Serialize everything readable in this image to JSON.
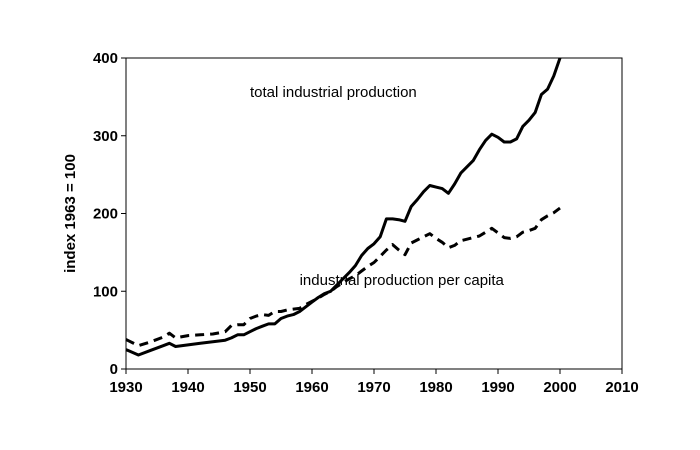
{
  "chart_data": {
    "type": "line",
    "title": "",
    "xlabel": "",
    "ylabel": "index 1963 = 100",
    "xlim": [
      1930,
      2010
    ],
    "ylim": [
      0,
      400
    ],
    "x_ticks": [
      1930,
      1940,
      1950,
      1960,
      1970,
      1980,
      1990,
      2000,
      2010
    ],
    "y_ticks": [
      0,
      100,
      200,
      300,
      400
    ],
    "grid": false,
    "legend": "none",
    "series": [
      {
        "name": "total industrial production",
        "style": "solid",
        "color": "#000000",
        "x": [
          1930,
          1932,
          1934,
          1936,
          1937,
          1938,
          1940,
          1942,
          1944,
          1946,
          1947,
          1948,
          1949,
          1950,
          1951,
          1952,
          1953,
          1954,
          1955,
          1956,
          1957,
          1958,
          1959,
          1960,
          1961,
          1962,
          1963,
          1964,
          1965,
          1966,
          1967,
          1968,
          1969,
          1970,
          1971,
          1972,
          1973,
          1974,
          1975,
          1976,
          1977,
          1978,
          1979,
          1980,
          1981,
          1982,
          1983,
          1984,
          1985,
          1986,
          1987,
          1988,
          1989,
          1990,
          1991,
          1992,
          1993,
          1994,
          1995,
          1996,
          1997,
          1998,
          1999,
          2000
        ],
        "y": [
          25,
          18,
          24,
          30,
          33,
          29,
          31,
          33,
          35,
          37,
          40,
          44,
          44,
          48,
          52,
          55,
          58,
          58,
          65,
          68,
          70,
          74,
          80,
          86,
          92,
          97,
          100,
          108,
          116,
          124,
          133,
          146,
          155,
          161,
          170,
          193,
          193,
          192,
          190,
          209,
          218,
          228,
          236,
          234,
          232,
          226,
          238,
          252,
          260,
          268,
          282,
          294,
          302,
          298,
          292,
          292,
          296,
          312,
          320,
          330,
          353,
          360,
          377,
          400
        ]
      },
      {
        "name": "industrial production per capita",
        "style": "dashed",
        "color": "#000000",
        "x": [
          1930,
          1932,
          1934,
          1936,
          1937,
          1938,
          1940,
          1942,
          1944,
          1946,
          1947,
          1948,
          1949,
          1950,
          1951,
          1952,
          1953,
          1954,
          1955,
          1956,
          1957,
          1958,
          1959,
          1960,
          1961,
          1962,
          1963,
          1964,
          1965,
          1966,
          1967,
          1968,
          1969,
          1970,
          1971,
          1972,
          1973,
          1974,
          1975,
          1976,
          1977,
          1978,
          1979,
          1980,
          1981,
          1982,
          1983,
          1984,
          1985,
          1986,
          1987,
          1988,
          1989,
          1990,
          1991,
          1992,
          1993,
          1994,
          1995,
          1996,
          1997,
          1998,
          1999,
          2000
        ],
        "y": [
          38,
          30,
          35,
          41,
          46,
          40,
          43,
          44,
          45,
          48,
          56,
          57,
          57,
          65,
          68,
          70,
          69,
          74,
          74,
          76,
          77,
          78,
          83,
          87,
          91,
          96,
          100,
          106,
          111,
          116,
          120,
          126,
          132,
          137,
          145,
          153,
          160,
          153,
          147,
          162,
          166,
          170,
          174,
          168,
          163,
          156,
          159,
          165,
          167,
          169,
          171,
          176,
          181,
          175,
          169,
          168,
          170,
          176,
          178,
          181,
          192,
          197,
          201,
          207
        ]
      }
    ],
    "annotations": [
      {
        "text": "total industrial production",
        "x": 1950,
        "y": 350
      },
      {
        "text": "industrial production per capita",
        "x": 1958,
        "y": 108
      }
    ]
  }
}
